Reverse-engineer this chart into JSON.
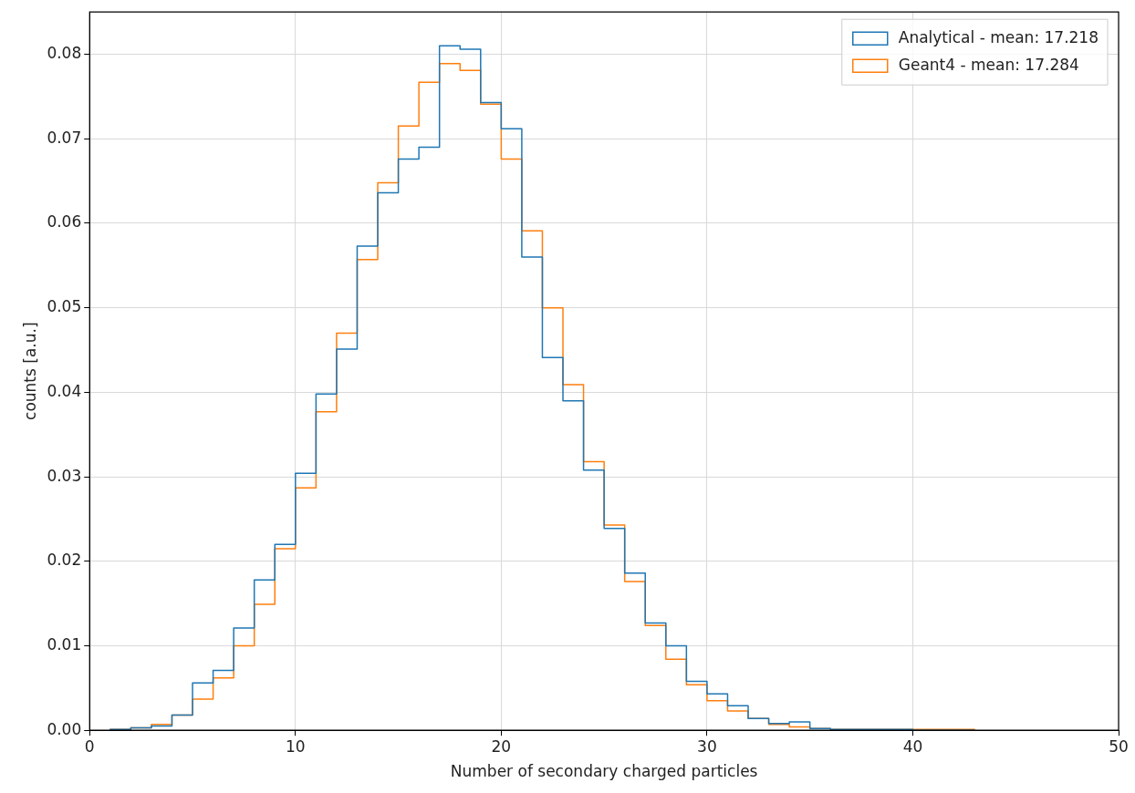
{
  "chart_data": {
    "type": "histogram",
    "xlabel": "Number of secondary charged particles",
    "ylabel": "counts [a.u.]",
    "bins": [
      1,
      2,
      3,
      4,
      5,
      6,
      7,
      8,
      9,
      10,
      11,
      12,
      13,
      14,
      15,
      16,
      17,
      18,
      19,
      20,
      21,
      22,
      23,
      24,
      25,
      26,
      27,
      28,
      29,
      30,
      31,
      32,
      33,
      34,
      35,
      36,
      37,
      38,
      39,
      40,
      41,
      42,
      43
    ],
    "series": [
      {
        "name": "Analytical - mean: 17.218",
        "color": "#1f77b4",
        "values": [
          0.0001,
          0.0003,
          0.0005,
          0.0018,
          0.0056,
          0.0071,
          0.0121,
          0.0178,
          0.022,
          0.0304,
          0.0398,
          0.0451,
          0.0573,
          0.0636,
          0.0676,
          0.069,
          0.081,
          0.0806,
          0.0743,
          0.0712,
          0.056,
          0.0441,
          0.039,
          0.0308,
          0.0239,
          0.0186,
          0.0127,
          0.01,
          0.0058,
          0.0043,
          0.0029,
          0.0014,
          0.0008,
          0.001,
          0.0002,
          0.0001,
          0.0001,
          0.0001,
          0.0001,
          0,
          0,
          0
        ]
      },
      {
        "name": "Geant4 - mean: 17.284",
        "color": "#ff7f0e",
        "values": [
          0.0001,
          0.0003,
          0.0007,
          0.0018,
          0.0037,
          0.0062,
          0.01,
          0.0149,
          0.0215,
          0.0287,
          0.0377,
          0.047,
          0.0557,
          0.0648,
          0.0715,
          0.0767,
          0.0789,
          0.0781,
          0.0741,
          0.0676,
          0.0591,
          0.05,
          0.0409,
          0.0318,
          0.0243,
          0.0176,
          0.0124,
          0.0084,
          0.0054,
          0.0035,
          0.0023,
          0.0014,
          0.0007,
          0.0004,
          0.0002,
          0.0001,
          0.0001,
          0.0001,
          0.0001,
          0.0001,
          0.0001,
          0.0001
        ]
      }
    ],
    "xlim": [
      0,
      50
    ],
    "xticks": [
      0,
      10,
      20,
      30,
      40,
      50
    ],
    "ylim": [
      0,
      0.085
    ],
    "yticks": [
      {
        "value": 0,
        "label": "0.00"
      },
      {
        "value": 0.01,
        "label": "0.01"
      },
      {
        "value": 0.02,
        "label": "0.02"
      },
      {
        "value": 0.03,
        "label": "0.03"
      },
      {
        "value": 0.04,
        "label": "0.04"
      },
      {
        "value": 0.05,
        "label": "0.05"
      },
      {
        "value": 0.06,
        "label": "0.06"
      },
      {
        "value": 0.07,
        "label": "0.07"
      },
      {
        "value": 0.08,
        "label": "0.08"
      }
    ],
    "grid": true,
    "legend": "top right"
  }
}
